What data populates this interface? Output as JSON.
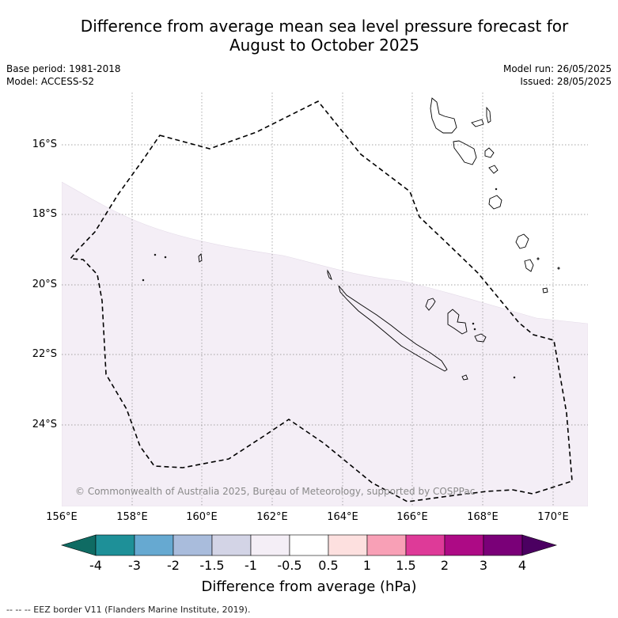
{
  "title": {
    "line1": "Difference from average mean sea level pressure forecast for",
    "line2": "August to October 2025"
  },
  "meta_left": {
    "base_period": "Base period: 1981-2018",
    "model": "Model: ACCESS-S2"
  },
  "meta_right": {
    "model_run": "Model run: 26/05/2025",
    "issued": "Issued: 28/05/2025"
  },
  "map": {
    "lat_labels": [
      "16°S",
      "18°S",
      "20°S",
      "22°S",
      "24°S"
    ],
    "lon_labels": [
      "156°E",
      "158°E",
      "160°E",
      "162°E",
      "164°E",
      "166°E",
      "168°E",
      "170°E"
    ],
    "copyright": "© Commonwealth of Australia 2025, Bureau of Meteorology, supported by COSPPac",
    "shaded_region_category": "-1 to -0.5 hPa",
    "shaded_region_color": "#f4eef6"
  },
  "colorbar": {
    "title": "Difference from average (hPa)",
    "ticks": [
      "-4",
      "-3",
      "-2",
      "-1.5",
      "-1",
      "-0.5",
      "0.5",
      "1",
      "1.5",
      "2",
      "3",
      "4"
    ],
    "colors": [
      "#0f6b63",
      "#1e9098",
      "#66a9d1",
      "#a9bcdc",
      "#d3d4e6",
      "#f4eef6",
      "#ffffff",
      "#fde0df",
      "#f8a0b6",
      "#de3a98",
      "#ad0a85",
      "#7a0078",
      "#4b0061"
    ]
  },
  "legend_note": "--  --  -- EEZ border V11 (Flanders Marine Institute, 2019)."
}
